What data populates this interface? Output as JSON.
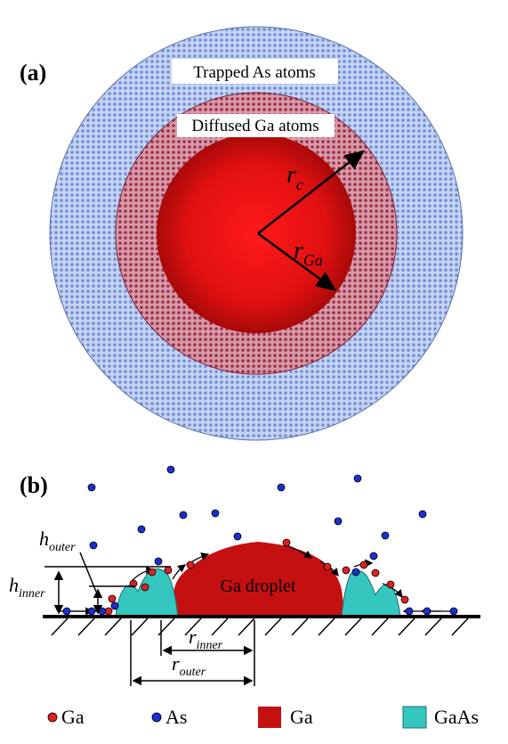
{
  "panel_a": {
    "label": "(a)",
    "outer_ring_label": "Trapped As atoms",
    "inner_ring_label": "Diffused Ga atoms",
    "r_c_symbol": "r",
    "r_c_sub": "c",
    "r_ga_symbol": "r",
    "r_ga_sub": "Ga",
    "colors": {
      "outer_ring": "#b3c3ea",
      "inner_ring": "#c77d8e",
      "core": "#e41212"
    }
  },
  "panel_b": {
    "label": "(b)",
    "droplet_label": "Ga droplet",
    "h_outer": {
      "symbol": "h",
      "sub": "outer"
    },
    "h_inner": {
      "symbol": "h",
      "sub": "inner"
    },
    "r_inner": {
      "symbol": "r",
      "sub": "inner"
    },
    "r_outer": {
      "symbol": "r",
      "sub": "outer"
    },
    "colors": {
      "droplet": "#c41010",
      "gaas": "#35c6c0",
      "ga_atom": "#e02020",
      "as_atom": "#1a2fd0"
    }
  },
  "legend": [
    {
      "kind": "dot",
      "color": "#e02020",
      "label": "Ga"
    },
    {
      "kind": "dot",
      "color": "#1a2fd0",
      "label": "As"
    },
    {
      "kind": "square",
      "color": "#c41010",
      "label": "Ga"
    },
    {
      "kind": "square",
      "color": "#35c6c0",
      "label": "GaAs"
    }
  ]
}
